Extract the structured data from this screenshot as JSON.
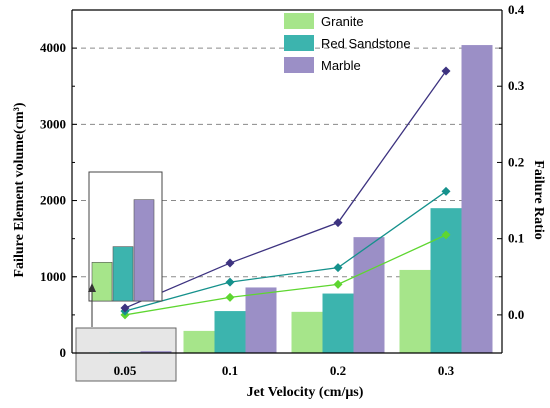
{
  "chart_data": {
    "type": "bar",
    "categories": [
      "0.05",
      "0.1",
      "0.2",
      "0.3"
    ],
    "xlabel": "Jet Velocity (cm/μs)",
    "ylabel_left": "Failure Element volume(cm³)",
    "ylabel_right": "Failure Ratio",
    "ylim_left": [
      0,
      4500
    ],
    "ylim_right": [
      -0.05,
      0.4
    ],
    "yticks_left": [
      "0",
      "1000",
      "2000",
      "3000",
      "4000"
    ],
    "yticks_right": [
      "0.0",
      "0.1",
      "0.2",
      "0.3",
      "0.4"
    ],
    "grid": "dashed horizontal",
    "legend_position": "top",
    "series": [
      {
        "name": "Granite",
        "type": "bar",
        "color": "#a6e58a",
        "values": [
          5,
          290,
          540,
          1090
        ]
      },
      {
        "name": "Red Sandstone",
        "type": "bar",
        "color": "#3cb4ae",
        "values": [
          10,
          550,
          780,
          1900
        ]
      },
      {
        "name": "Marble",
        "type": "bar",
        "color": "#9b8fc6",
        "values": [
          25,
          860,
          1520,
          4040
        ]
      }
    ],
    "line_series": [
      {
        "series": "Granite",
        "color": "#5ed630",
        "values": [
          0.0,
          0.023,
          0.04,
          0.105
        ]
      },
      {
        "series": "Red Sandstone",
        "color": "#15918c",
        "values": [
          0.005,
          0.043,
          0.062,
          0.162
        ]
      },
      {
        "series": "Marble",
        "color": "#3d3380",
        "values": [
          0.009,
          0.068,
          0.121,
          0.32
        ]
      }
    ],
    "inset": {
      "category": "0.05",
      "values": [
        420,
        590,
        1100
      ],
      "ylim": [
        0,
        1400
      ]
    }
  }
}
